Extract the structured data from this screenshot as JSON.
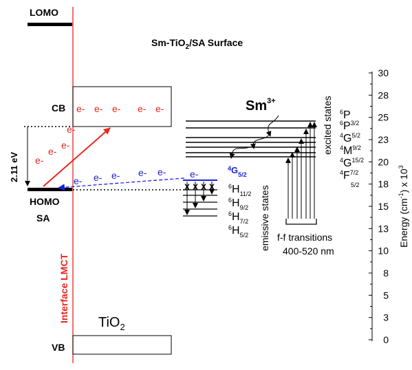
{
  "title": {
    "main": "Sm-TiO",
    "sub": "2",
    "tail": "/SA Surface"
  },
  "levels": {
    "lomo": "LOMO",
    "homo": "HOMO",
    "sa": "SA",
    "cb": "CB",
    "vb": "VB"
  },
  "gap_label": "2.11 eV",
  "lmct_label": "Interface LMCT",
  "tio2": {
    "main": "TiO",
    "sub": "2"
  },
  "electron": "e-",
  "sm_ion": {
    "main": "Sm",
    "sup": "3+"
  },
  "emitting_level": {
    "main": "4",
    "letter": "G",
    "sub": "5/2"
  },
  "emissive_terms": [
    {
      "sup": "6",
      "letter": "H",
      "sub": "11/2"
    },
    {
      "sup": "6",
      "letter": "H",
      "sub": "9/2"
    },
    {
      "sup": "6",
      "letter": "H",
      "sub": "7/2"
    },
    {
      "sup": "6",
      "letter": "H",
      "sub": "5/2"
    }
  ],
  "emissive_label": "emissive states",
  "excited_label": "excited states",
  "excited_terms": [
    {
      "sup": "6",
      "letter": "P",
      "sub": ""
    },
    {
      "sup": "6",
      "letter": "P",
      "sub": "3/2"
    },
    {
      "sup": "4",
      "letter": "G",
      "sub": "5/2"
    },
    {
      "sup": "4",
      "letter": "M",
      "sub": "9/2"
    },
    {
      "sup": "4",
      "letter": "G",
      "sub": "15/2"
    },
    {
      "sup": "4",
      "letter": "F",
      "sub": "7/2"
    },
    {
      "sup": "",
      "letter": "",
      "sub": "5/2"
    }
  ],
  "ff_label": "f-f transitions",
  "ff_range": "400-520 nm",
  "axis": {
    "label_prefix": "Energy (cm",
    "label_sup": "-1",
    "label_suffix": ") x 10",
    "label_sup2": "3",
    "ticks": [
      "30",
      "28",
      "25",
      "23",
      "20",
      "18",
      "15",
      "13",
      "10",
      "8",
      "5",
      "3",
      "0"
    ]
  },
  "colors": {
    "red": "#e8251f",
    "blue": "#1a22d6",
    "black": "#000000"
  }
}
